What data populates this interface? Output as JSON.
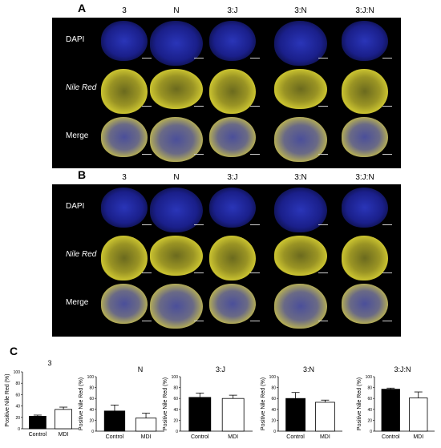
{
  "panel_letters": {
    "a": "A",
    "b": "B",
    "c": "C"
  },
  "columns": [
    "3",
    "N",
    "3:J",
    "3:N",
    "3:J:N"
  ],
  "rows": [
    "DAPI",
    "Nile Red",
    "Merge"
  ],
  "colors": {
    "dapi": "#1a1f8a",
    "nile_red": "#c9c230",
    "bar_control": "#000000",
    "bar_mdi": "#ffffff"
  },
  "chart_data": [
    {
      "type": "bar",
      "title": "3",
      "ylabel": "Positive Nile Red (%)",
      "categories": [
        "Control",
        "MDI"
      ],
      "values": [
        22,
        34
      ],
      "errors": [
        2,
        4
      ],
      "ylim": [
        0,
        100
      ],
      "yticks": [
        0,
        20,
        40,
        60,
        80,
        100
      ]
    },
    {
      "type": "bar",
      "title": "N",
      "ylabel": "Positive Nile Red (%)",
      "categories": [
        "Control",
        "MDI"
      ],
      "values": [
        37,
        24
      ],
      "errors": [
        11,
        9
      ],
      "ylim": [
        0,
        100
      ],
      "yticks": [
        0,
        20,
        40,
        60,
        80,
        100
      ]
    },
    {
      "type": "bar",
      "title": "3:J",
      "ylabel": "Positive Nile Red (%)",
      "categories": [
        "Control",
        "MDI"
      ],
      "values": [
        62,
        60
      ],
      "errors": [
        8,
        6
      ],
      "ylim": [
        0,
        100
      ],
      "yticks": [
        0,
        20,
        40,
        60,
        80,
        100
      ]
    },
    {
      "type": "bar",
      "title": "3:N",
      "ylabel": "Positive Nile Red (%)",
      "categories": [
        "Control",
        "MDI"
      ],
      "values": [
        60,
        53
      ],
      "errors": [
        11,
        4
      ],
      "ylim": [
        0,
        100
      ],
      "yticks": [
        0,
        20,
        40,
        60,
        80,
        100
      ]
    },
    {
      "type": "bar",
      "title": "3:J:N",
      "ylabel": "Positive Nile Red (%)",
      "categories": [
        "Control",
        "MDI"
      ],
      "values": [
        77,
        61
      ],
      "errors": [
        2,
        11
      ],
      "ylim": [
        0,
        100
      ],
      "yticks": [
        0,
        20,
        40,
        60,
        80,
        100
      ]
    }
  ]
}
